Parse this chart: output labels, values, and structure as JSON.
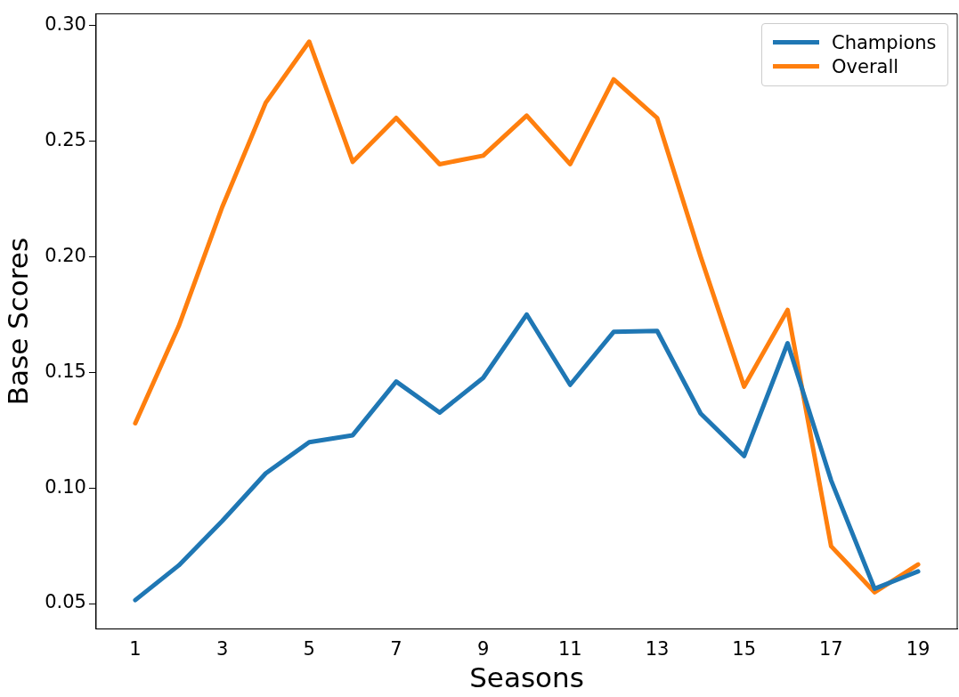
{
  "chart_data": {
    "type": "line",
    "xlabel": "Seasons",
    "ylabel": "Base Scores",
    "x": [
      1,
      2,
      3,
      4,
      5,
      6,
      7,
      8,
      9,
      10,
      11,
      12,
      13,
      14,
      15,
      16,
      17,
      18,
      19
    ],
    "series": [
      {
        "name": "Champions",
        "color": "#1f77b4",
        "values": [
          0.0515,
          0.0665,
          0.0857,
          0.1063,
          0.1198,
          0.1228,
          0.146,
          0.1326,
          0.1476,
          0.175,
          0.1446,
          0.1675,
          0.1679,
          0.1322,
          0.1138,
          0.1626,
          0.1033,
          0.0564,
          0.0639
        ]
      },
      {
        "name": "Overall",
        "color": "#ff7f0e",
        "values": [
          0.128,
          0.17,
          0.2215,
          0.2666,
          0.293,
          0.241,
          0.26,
          0.24,
          0.2437,
          0.261,
          0.24,
          0.2767,
          0.26,
          0.2,
          0.1438,
          0.177,
          0.0748,
          0.0549,
          0.0669
        ]
      }
    ],
    "xlim": [
      0.1,
      19.9
    ],
    "xticks": [
      1,
      3,
      5,
      7,
      9,
      11,
      13,
      15,
      17,
      19
    ],
    "ylim": [
      0.039,
      0.305
    ],
    "yticks": [
      {
        "value": 0.05,
        "label": "0.05"
      },
      {
        "value": 0.1,
        "label": "0.10"
      },
      {
        "value": 0.15,
        "label": "0.15"
      },
      {
        "value": 0.2,
        "label": "0.20"
      },
      {
        "value": 0.25,
        "label": "0.25"
      },
      {
        "value": 0.3,
        "label": "0.30"
      }
    ],
    "grid": false,
    "legend": "top right",
    "marker": "none",
    "line_style": "solid"
  }
}
